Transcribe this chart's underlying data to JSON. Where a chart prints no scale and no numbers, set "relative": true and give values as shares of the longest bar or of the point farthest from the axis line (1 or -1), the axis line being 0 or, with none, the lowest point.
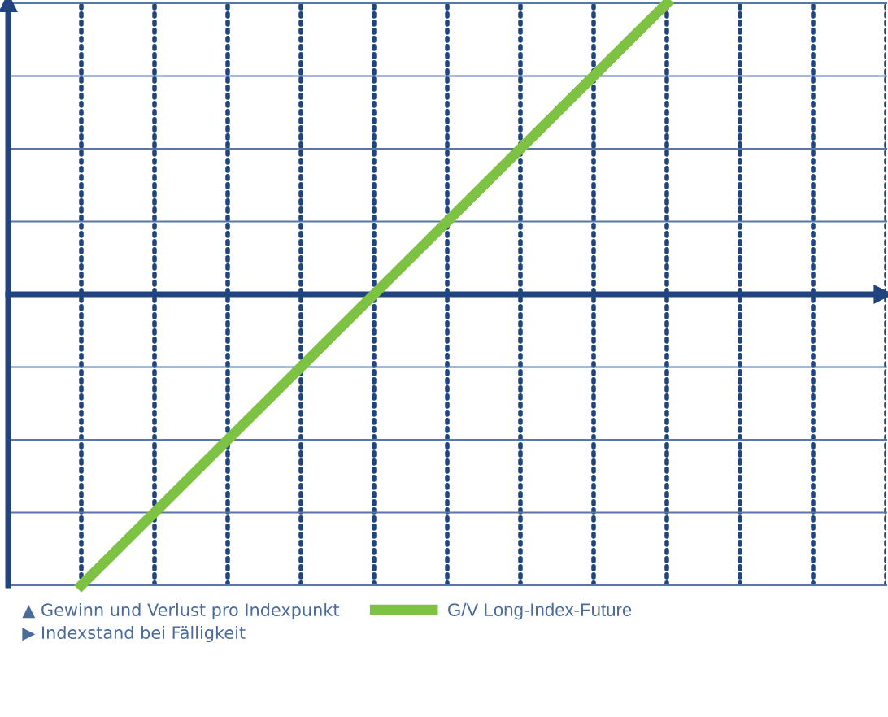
{
  "chart_data": {
    "type": "line",
    "relative": true,
    "annotations": [
      "▲ Gewinn und Verlust pro Indexpunkt",
      "▶ Indexstand bei Fälligkeit"
    ],
    "categories": [
      null,
      null,
      null,
      null,
      null,
      null,
      null,
      null,
      null,
      null,
      null,
      null,
      null
    ],
    "series": [
      {
        "name": "G/V Long-Index-Future",
        "color": "#7dc242",
        "values": [
          null,
          -1,
          -0.75,
          -0.5,
          -0.25,
          0,
          0.25,
          0.5,
          0.75,
          1,
          null,
          null,
          null
        ]
      }
    ],
    "ref_lines": [
      {
        "axis": "y",
        "value": 0,
        "label": null,
        "color": "#1f4480",
        "line_style": "solid"
      },
      {
        "axis": "y",
        "value": 1,
        "label": null,
        "color": "#5577aa",
        "line_style": "solid"
      },
      {
        "axis": "y",
        "value": 0.75,
        "label": null,
        "color": "#5577aa",
        "line_style": "solid"
      },
      {
        "axis": "y",
        "value": 0.5,
        "label": null,
        "color": "#5577aa",
        "line_style": "solid"
      },
      {
        "axis": "y",
        "value": 0.25,
        "label": null,
        "color": "#5577aa",
        "line_style": "solid"
      },
      {
        "axis": "y",
        "value": -0.25,
        "label": null,
        "color": "#5577aa",
        "line_style": "solid"
      },
      {
        "axis": "y",
        "value": -0.5,
        "label": null,
        "color": "#5577aa",
        "line_style": "solid"
      },
      {
        "axis": "y",
        "value": -0.75,
        "label": null,
        "color": "#5577aa",
        "line_style": "solid"
      },
      {
        "axis": "y",
        "value": -1,
        "label": null,
        "color": "#5577aa",
        "line_style": "solid"
      }
    ],
    "grid": "x",
    "legend": "bottom",
    "marker": "none",
    "line_style": "solid"
  }
}
